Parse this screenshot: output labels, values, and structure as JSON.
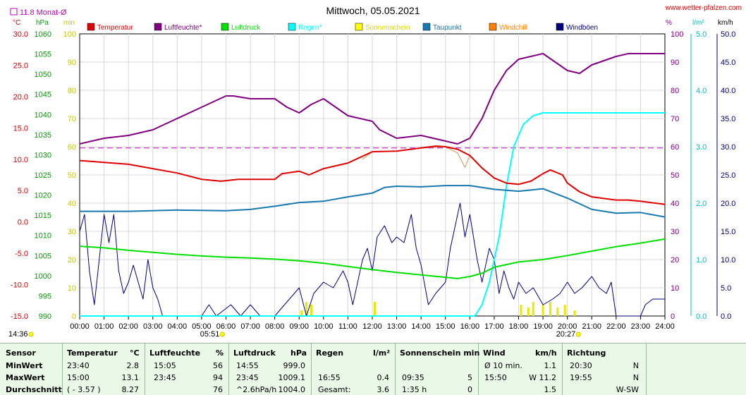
{
  "header": {
    "title": "Mittwoch, 05.05.2021",
    "site": "www.wetter-pfalzen.com",
    "month_avg": "11.8 Monat-Ø",
    "current_time": "14:36"
  },
  "units_left": [
    "°C",
    "hPa",
    "min"
  ],
  "units_right": [
    "%",
    "l/m²",
    "km/h"
  ],
  "legend": [
    {
      "label": "Temperatur",
      "color": "#e00000"
    },
    {
      "label": "Luftfeuchte*",
      "color": "#800080"
    },
    {
      "label": "Luftdruck",
      "color": "#00e000"
    },
    {
      "label": "Regen*",
      "color": "#00ffff"
    },
    {
      "label": "Sonnenschein",
      "color": "#ffff00"
    },
    {
      "label": "Taupunkt",
      "color": "#1878b0"
    },
    {
      "label": "Windchill",
      "color": "#ff8000"
    },
    {
      "label": "Windböen",
      "color": "#000080"
    }
  ],
  "axes": {
    "temp": [
      "30.0",
      "25.0",
      "20.0",
      "15.0",
      "10.0",
      "5.0",
      "0.0",
      "-5.0",
      "-10.0",
      "-15.0"
    ],
    "pressure": [
      "1060",
      "1055",
      "1050",
      "1045",
      "1040",
      "1035",
      "1030",
      "1025",
      "1020",
      "1015",
      "1010",
      "1005",
      "1000",
      "995",
      "990"
    ],
    "minutes": [
      "100",
      "90",
      "80",
      "70",
      "60",
      "50",
      "40",
      "30",
      "20",
      "10",
      "0"
    ],
    "humidity": [
      "100",
      "90",
      "80",
      "70",
      "60",
      "50",
      "40",
      "30",
      "20",
      "10",
      "0"
    ],
    "rain": [
      "5.0",
      "4.0",
      "3.0",
      "2.0",
      "1.0",
      "0.0"
    ],
    "wind": [
      "50.0",
      "45.0",
      "40.0",
      "35.0",
      "30.0",
      "25.0",
      "20.0",
      "15.0",
      "10.0",
      "5.0",
      "0.0"
    ],
    "time": [
      "00:00",
      "01:00",
      "02:00",
      "03:00",
      "04:00",
      "05:00",
      "06:00",
      "07:00",
      "08:00",
      "09:00",
      "10:00",
      "11:00",
      "12:00",
      "13:00",
      "14:00",
      "15:00",
      "16:00",
      "17:00",
      "18:00",
      "19:00",
      "20:00",
      "21:00",
      "22:00",
      "23:00",
      "24:00"
    ]
  },
  "sun": {
    "rise": "05:51",
    "set": "20:27"
  },
  "chart_data": {
    "type": "line",
    "title": "Mittwoch, 05.05.2021",
    "x_unit": "hours",
    "xlim": [
      0,
      24
    ],
    "month_avg_temp": 11.8,
    "series": [
      {
        "name": "Temperatur",
        "unit": "°C",
        "ylim": [
          -15,
          30
        ],
        "points": [
          [
            0,
            9.8
          ],
          [
            1,
            9.5
          ],
          [
            2,
            9.2
          ],
          [
            3,
            8.5
          ],
          [
            4,
            7.8
          ],
          [
            5,
            6.8
          ],
          [
            5.8,
            6.5
          ],
          [
            6.5,
            6.8
          ],
          [
            7,
            6.8
          ],
          [
            8,
            6.8
          ],
          [
            8.3,
            7.7
          ],
          [
            9,
            8.1
          ],
          [
            9.4,
            7.5
          ],
          [
            10,
            8.5
          ],
          [
            11,
            9.4
          ],
          [
            11.5,
            10.3
          ],
          [
            12,
            11.2
          ],
          [
            13,
            11.3
          ],
          [
            14,
            11.8
          ],
          [
            14.6,
            12.1
          ],
          [
            15,
            12.0
          ],
          [
            15.5,
            11.6
          ],
          [
            16,
            10.6
          ],
          [
            16.5,
            8.6
          ],
          [
            17,
            7.0
          ],
          [
            17.5,
            6.2
          ],
          [
            18,
            6.0
          ],
          [
            18.5,
            6.5
          ],
          [
            19,
            7.7
          ],
          [
            19.3,
            8.3
          ],
          [
            19.8,
            7.5
          ],
          [
            20,
            6.2
          ],
          [
            20.5,
            4.8
          ],
          [
            21,
            4.0
          ],
          [
            22,
            3.5
          ],
          [
            22.5,
            3.5
          ],
          [
            23,
            3.3
          ],
          [
            24,
            2.8
          ]
        ]
      },
      {
        "name": "Luftfeuchte*",
        "unit": "%",
        "ylim": [
          0,
          100
        ],
        "points": [
          [
            0,
            61
          ],
          [
            1,
            63
          ],
          [
            2,
            64
          ],
          [
            3,
            66
          ],
          [
            3.5,
            68
          ],
          [
            4,
            70
          ],
          [
            5,
            74
          ],
          [
            5.5,
            76
          ],
          [
            6,
            78
          ],
          [
            6.3,
            78
          ],
          [
            7,
            77
          ],
          [
            8,
            77
          ],
          [
            8.5,
            74
          ],
          [
            9,
            72
          ],
          [
            9.5,
            75
          ],
          [
            10,
            77
          ],
          [
            10.5,
            74
          ],
          [
            11,
            71
          ],
          [
            12,
            69
          ],
          [
            12.3,
            66
          ],
          [
            13,
            63
          ],
          [
            14,
            64
          ],
          [
            14.5,
            63
          ],
          [
            15,
            62
          ],
          [
            15.5,
            61
          ],
          [
            16,
            63
          ],
          [
            16.5,
            70
          ],
          [
            17,
            80
          ],
          [
            17.5,
            87
          ],
          [
            18,
            91
          ],
          [
            18.5,
            92
          ],
          [
            19,
            93
          ],
          [
            19.5,
            90
          ],
          [
            20,
            87
          ],
          [
            20.5,
            86
          ],
          [
            21,
            89
          ],
          [
            22,
            92
          ],
          [
            22.5,
            93
          ],
          [
            23,
            93
          ],
          [
            24,
            93
          ]
        ]
      },
      {
        "name": "Luftdruck",
        "unit": "hPa",
        "ylim": [
          990,
          1060
        ],
        "points": [
          [
            0,
            1007.3
          ],
          [
            1,
            1006.9
          ],
          [
            2,
            1006.3
          ],
          [
            3,
            1005.8
          ],
          [
            4,
            1005.3
          ],
          [
            5,
            1004.9
          ],
          [
            6,
            1004.6
          ],
          [
            7,
            1004.4
          ],
          [
            8,
            1004.1
          ],
          [
            9,
            1003.7
          ],
          [
            10,
            1003.1
          ],
          [
            11,
            1002.3
          ],
          [
            12,
            1001.5
          ],
          [
            13,
            1000.8
          ],
          [
            14,
            1000.2
          ],
          [
            15,
            999.6
          ],
          [
            15.5,
            999.3
          ],
          [
            16,
            999.8
          ],
          [
            16.5,
            1000.6
          ],
          [
            17,
            1002.1
          ],
          [
            18,
            1003.4
          ],
          [
            19,
            1004.0
          ],
          [
            20,
            1005.0
          ],
          [
            21,
            1006.1
          ],
          [
            22,
            1007.2
          ],
          [
            23,
            1008.1
          ],
          [
            24,
            1009.1
          ]
        ]
      },
      {
        "name": "Regen*",
        "unit": "l/m²",
        "ylim": [
          0,
          5
        ],
        "points": [
          [
            0,
            0
          ],
          [
            16.2,
            0
          ],
          [
            16.5,
            0.2
          ],
          [
            16.8,
            0.6
          ],
          [
            17.2,
            1.4
          ],
          [
            17.5,
            2.3
          ],
          [
            17.8,
            3.0
          ],
          [
            18.2,
            3.4
          ],
          [
            18.6,
            3.55
          ],
          [
            19,
            3.6
          ],
          [
            24,
            3.6
          ]
        ]
      },
      {
        "name": "Sonnenschein",
        "unit": "min",
        "ylim": [
          0,
          100
        ],
        "points": [
          [
            9.1,
            2
          ],
          [
            9.3,
            5
          ],
          [
            9.5,
            4
          ],
          [
            12.1,
            5
          ],
          [
            18.1,
            4
          ],
          [
            18.4,
            3
          ],
          [
            18.6,
            5
          ],
          [
            19.0,
            4
          ],
          [
            19.3,
            5
          ],
          [
            19.6,
            3
          ],
          [
            19.9,
            4
          ],
          [
            20.3,
            2
          ]
        ]
      },
      {
        "name": "Taupunkt",
        "unit": "°C",
        "ylim": [
          -15,
          30
        ],
        "points": [
          [
            0,
            1.7
          ],
          [
            2,
            1.7
          ],
          [
            4,
            1.9
          ],
          [
            6,
            1.8
          ],
          [
            7,
            2.0
          ],
          [
            8,
            2.5
          ],
          [
            9,
            3.1
          ],
          [
            10,
            3.3
          ],
          [
            11,
            4.0
          ],
          [
            12,
            4.6
          ],
          [
            12.5,
            5.5
          ],
          [
            13,
            5.7
          ],
          [
            14,
            5.6
          ],
          [
            15,
            5.8
          ],
          [
            16,
            5.8
          ],
          [
            17,
            5.2
          ],
          [
            18,
            4.9
          ],
          [
            19,
            5.3
          ],
          [
            20,
            3.8
          ],
          [
            21,
            2.0
          ],
          [
            22,
            1.4
          ],
          [
            23,
            1.5
          ],
          [
            24,
            0.8
          ]
        ]
      },
      {
        "name": "Windchill",
        "unit": "°C",
        "ylim": [
          -15,
          30
        ],
        "points": [
          [
            11.6,
            10.0
          ],
          [
            12,
            11.2
          ],
          [
            13,
            11.3
          ],
          [
            14,
            11.8
          ],
          [
            15,
            12.0
          ],
          [
            15.5,
            11.0
          ],
          [
            15.8,
            8.7
          ],
          [
            16,
            10.6
          ],
          [
            16.3,
            9.5
          ],
          [
            16.5,
            8.6
          ],
          [
            17,
            7.0
          ]
        ]
      },
      {
        "name": "Windböen",
        "unit": "km/h",
        "ylim": [
          0,
          50
        ],
        "points": [
          [
            0,
            15
          ],
          [
            0.2,
            18
          ],
          [
            0.4,
            8
          ],
          [
            0.6,
            2
          ],
          [
            0.8,
            10
          ],
          [
            1,
            18
          ],
          [
            1.2,
            13
          ],
          [
            1.4,
            18
          ],
          [
            1.6,
            8
          ],
          [
            1.8,
            4
          ],
          [
            2,
            6
          ],
          [
            2.2,
            9
          ],
          [
            2.4,
            6
          ],
          [
            2.6,
            3
          ],
          [
            2.8,
            10
          ],
          [
            3,
            5
          ],
          [
            3.2,
            3
          ],
          [
            3.4,
            0
          ],
          [
            4,
            0
          ],
          [
            5,
            0
          ],
          [
            5.3,
            2
          ],
          [
            5.6,
            0
          ],
          [
            6.2,
            2
          ],
          [
            6.6,
            0
          ],
          [
            7,
            2
          ],
          [
            7.4,
            0
          ],
          [
            8,
            0
          ],
          [
            9,
            5
          ],
          [
            9.3,
            0
          ],
          [
            9.6,
            4
          ],
          [
            10,
            6
          ],
          [
            10.4,
            5
          ],
          [
            10.8,
            8
          ],
          [
            11,
            6
          ],
          [
            11.2,
            2
          ],
          [
            11.6,
            10
          ],
          [
            11.8,
            12
          ],
          [
            12,
            8
          ],
          [
            12.2,
            14
          ],
          [
            12.5,
            16
          ],
          [
            12.8,
            13
          ],
          [
            13,
            14
          ],
          [
            13.3,
            13
          ],
          [
            13.6,
            18
          ],
          [
            13.8,
            12
          ],
          [
            14,
            9
          ],
          [
            14.3,
            2
          ],
          [
            14.6,
            4
          ],
          [
            15,
            6
          ],
          [
            15.2,
            12
          ],
          [
            15.4,
            16
          ],
          [
            15.6,
            20
          ],
          [
            15.8,
            14
          ],
          [
            16,
            18
          ],
          [
            16.3,
            10
          ],
          [
            16.5,
            6
          ],
          [
            16.8,
            12
          ],
          [
            17,
            10
          ],
          [
            17.2,
            4
          ],
          [
            17.4,
            8
          ],
          [
            17.6,
            5
          ],
          [
            17.8,
            3
          ],
          [
            18,
            6
          ],
          [
            18.3,
            4
          ],
          [
            18.6,
            5
          ],
          [
            19,
            2
          ],
          [
            19.4,
            3
          ],
          [
            19.7,
            4
          ],
          [
            20,
            6
          ],
          [
            20.3,
            4
          ],
          [
            20.6,
            5
          ],
          [
            21,
            7
          ],
          [
            21.3,
            5
          ],
          [
            21.6,
            4
          ],
          [
            21.8,
            6
          ],
          [
            22,
            0
          ],
          [
            22.5,
            0
          ],
          [
            23,
            0
          ],
          [
            23.2,
            2
          ],
          [
            23.5,
            3
          ],
          [
            23.8,
            3
          ],
          [
            24,
            3
          ]
        ]
      }
    ]
  },
  "stats": {
    "headers": {
      "sensor": "Sensor",
      "temp": "Temperatur",
      "temp_unit": "°C",
      "hum": "Luftfeuchte",
      "hum_unit": "%",
      "press": "Luftdruck",
      "press_unit": "hPa",
      "rain": "Regen",
      "rain_unit": "l/m²",
      "sun": "Sonnenschein min",
      "wind": "Wind",
      "wind_unit": "km/h",
      "dir": "Richtung"
    },
    "rows": [
      {
        "label": "MinWert",
        "t_time": "23:40",
        "t_val": "2.8",
        "h_time": "15:05",
        "h_val": "56",
        "p_time": "14:55",
        "p_val": "999.0",
        "r_time": "",
        "r_val": "",
        "s_time": "",
        "s_val": "",
        "w_time": "Ø 10 min.",
        "w_val": "1.1",
        "d_time": "20:30",
        "d_val": "N"
      },
      {
        "label": "MaxWert",
        "t_time": "15:00",
        "t_val": "13.1",
        "h_time": "23:45",
        "h_val": "94",
        "p_time": "23:45",
        "p_val": "1009.1",
        "r_time": "16:55",
        "r_val": "0.4",
        "s_time": "09:35",
        "s_val": "5",
        "w_time": "15:50",
        "w_val": "W 11.2",
        "d_time": "19:55",
        "d_val": "N"
      },
      {
        "label": "Durchschnitt",
        "t_time": "( - 3.57 )",
        "t_val": "8.27",
        "h_time": "",
        "h_val": "76",
        "p_time": "^2.6hPa/h",
        "p_val": "1004.0",
        "r_time": "Gesamt:",
        "r_val": "3.6",
        "s_time": "1:35 h",
        "s_val": "0",
        "w_time": "",
        "w_val": "1.5",
        "d_time": "",
        "d_val": "W-SW"
      }
    ]
  }
}
